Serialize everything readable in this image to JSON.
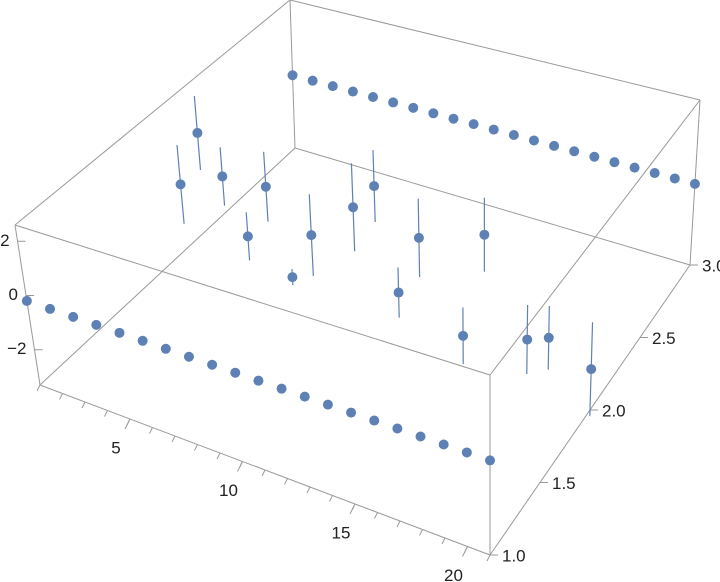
{
  "chart_data": {
    "type": "scatter3d",
    "xlim": [
      1,
      21
    ],
    "ylim": [
      1,
      3
    ],
    "zlim": [
      -3.3,
      2.6
    ],
    "xticks": [
      5,
      10,
      15,
      20
    ],
    "yticks": [
      {
        "value": 1,
        "label": "1.0"
      },
      {
        "value": 1.5,
        "label": "1.5"
      },
      {
        "value": 2,
        "label": "2.0"
      },
      {
        "value": 2.5,
        "label": "2.5"
      },
      {
        "value": 3,
        "label": "3.0"
      }
    ],
    "zticks": [
      {
        "value": -2,
        "label": "−2"
      },
      0,
      2
    ],
    "color": "#5e81b5",
    "series": [
      {
        "x": [
          1,
          2,
          3,
          4,
          5,
          6,
          7,
          8,
          9,
          10,
          11,
          12,
          13,
          14,
          15,
          16,
          17,
          18,
          19,
          20,
          21
        ],
        "y": [
          1,
          1,
          1,
          1,
          1,
          1,
          1,
          1,
          1,
          1,
          1,
          1,
          1,
          1,
          1,
          1,
          1,
          1,
          1,
          1,
          1
        ],
        "z": [
          -0.2,
          -0.2,
          -0.2,
          -0.2,
          -0.2,
          -0.2,
          -0.2,
          -0.2,
          -0.2,
          -0.2,
          -0.2,
          -0.2,
          -0.2,
          -0.2,
          -0.2,
          -0.2,
          -0.2,
          -0.2,
          -0.2,
          -0.2,
          -0.2
        ]
      },
      {
        "x": [
          2,
          3,
          4,
          5,
          6,
          7,
          8,
          10,
          11,
          12,
          13,
          15,
          16,
          18,
          19,
          21
        ],
        "y": [
          2,
          2,
          2,
          2,
          2,
          2,
          2,
          2,
          2,
          2,
          2,
          2,
          2,
          2,
          2,
          2
        ],
        "z": [
          0.1,
          2.3,
          0.9,
          -1.1,
          1.0,
          -2.1,
          -0.3,
          1.2,
          2.2,
          -1.4,
          0.8,
          -2.2,
          1.6,
          -1.6,
          -1.3,
          -1.9
        ],
        "errors": [
          1.5,
          1.4,
          1.1,
          0.9,
          1.3,
          0.3,
          1.5,
          1.6,
          1.3,
          0.9,
          1.4,
          1.0,
          1.3,
          1.2,
          1.1,
          1.6
        ]
      },
      {
        "x": [
          1,
          2,
          3,
          4,
          5,
          6,
          7,
          8,
          9,
          10,
          11,
          12,
          13,
          14,
          15,
          16,
          17,
          18,
          19,
          20,
          21
        ],
        "y": [
          3,
          3,
          3,
          3,
          3,
          3,
          3,
          3,
          3,
          3,
          3,
          3,
          3,
          3,
          3,
          3,
          3,
          3,
          3,
          3,
          3
        ],
        "z": [
          -0.4,
          -0.4,
          -0.4,
          -0.4,
          -0.4,
          -0.4,
          -0.4,
          -0.4,
          -0.4,
          -0.4,
          -0.4,
          -0.4,
          -0.4,
          -0.4,
          -0.4,
          -0.4,
          -0.4,
          -0.4,
          -0.4,
          -0.4,
          -0.4
        ]
      }
    ]
  }
}
